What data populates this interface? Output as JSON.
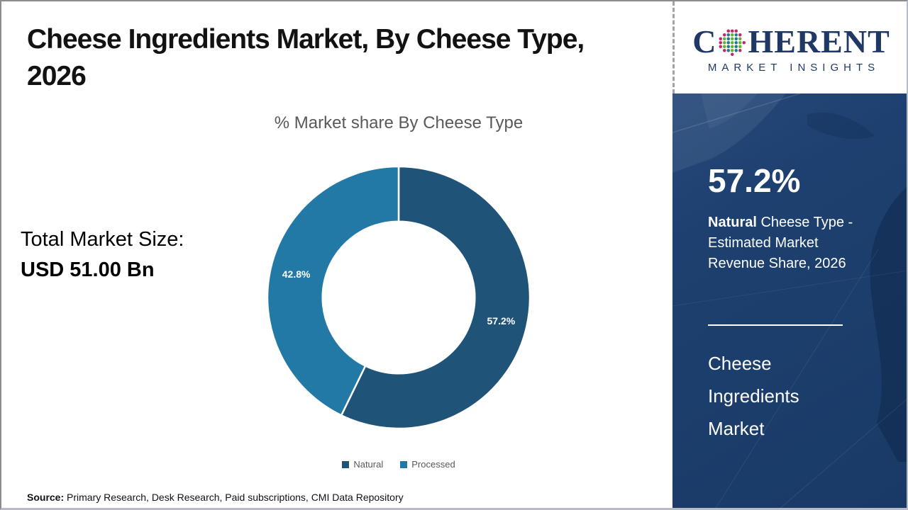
{
  "header": {
    "title": "Cheese Ingredients Market, By Cheese Type, 2026"
  },
  "logo": {
    "brand_c": "C",
    "brand_rest": "HERENT",
    "tagline": "MARKET INSIGHTS",
    "brand_color": "#1F3864"
  },
  "left_panel": {
    "total_label": "Total Market Size:",
    "total_value": "USD 51.00 Bn"
  },
  "footer": {
    "source_label": "Source:",
    "source_text": " Primary Research, Desk Research, Paid subscriptions, CMI Data Repository"
  },
  "sidebar": {
    "stat_value": "57.2%",
    "stat_highlight": "Natural",
    "stat_description": " Cheese Type - Estimated Market Revenue Share, 2026",
    "market_name_lines": [
      "Cheese",
      "Ingredients",
      "Market"
    ],
    "bg_color": "#1C3E6C"
  },
  "chart_data": {
    "type": "pie",
    "subtype": "donut",
    "title": "% Market share By Cheese Type",
    "categories": [
      "Natural",
      "Processed"
    ],
    "values": [
      57.2,
      42.8
    ],
    "slice_labels": [
      "57.2%",
      "42.8%"
    ],
    "colors": [
      "#1F5378",
      "#2279A6"
    ],
    "start_angle_deg": -90,
    "direction": "clockwise",
    "inner_radius_ratio": 0.58,
    "legend_position": "bottom",
    "title_color": "#595959"
  }
}
